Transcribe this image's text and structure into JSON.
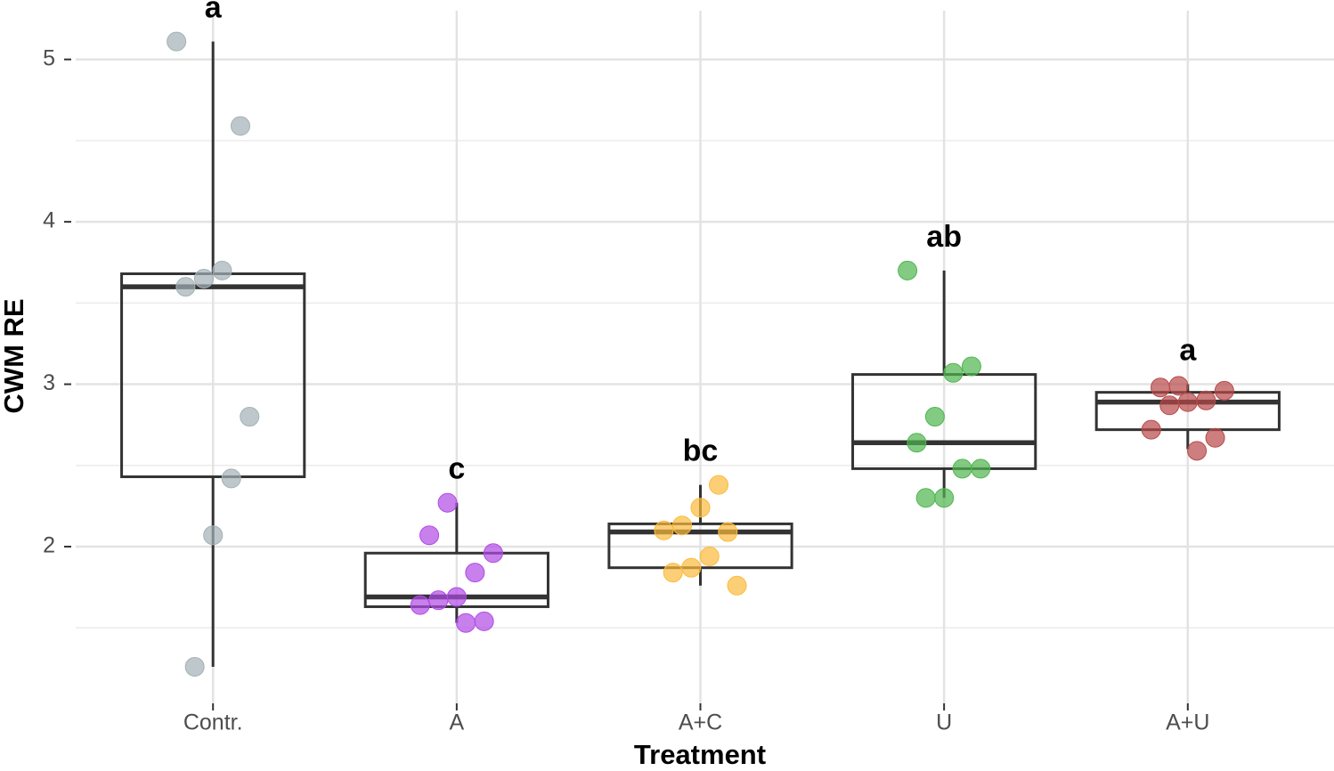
{
  "chart_data": {
    "type": "box",
    "xlabel": "Treatment",
    "ylabel": "CWM RE",
    "categories": [
      "Contr.",
      "A",
      "A+C",
      "U",
      "A+U"
    ],
    "colors": [
      "#a3b1b6",
      "#b04ae6",
      "#fbbb3c",
      "#4fb54f",
      "#b84848"
    ],
    "boxes": [
      {
        "whisker_low": 1.26,
        "q1": 2.43,
        "median": 3.6,
        "q3": 3.68,
        "whisker_high": 5.11
      },
      {
        "whisker_low": 1.53,
        "q1": 1.63,
        "median": 1.69,
        "q3": 1.96,
        "whisker_high": 2.27
      },
      {
        "whisker_low": 1.76,
        "q1": 1.87,
        "median": 2.09,
        "q3": 2.14,
        "whisker_high": 2.38
      },
      {
        "whisker_low": 2.3,
        "q1": 2.48,
        "median": 2.64,
        "q3": 3.06,
        "whisker_high": 3.7
      },
      {
        "whisker_low": 2.6,
        "q1": 2.72,
        "median": 2.89,
        "q3": 2.95,
        "whisker_high": 3.0
      }
    ],
    "points": [
      [
        5.11,
        4.59,
        3.7,
        3.65,
        3.6,
        2.8,
        2.42,
        2.07,
        1.26
      ],
      [
        2.27,
        2.07,
        1.96,
        1.84,
        1.69,
        1.67,
        1.64,
        1.54,
        1.53
      ],
      [
        2.38,
        2.24,
        2.13,
        2.1,
        2.09,
        1.94,
        1.87,
        1.84,
        1.76
      ],
      [
        3.7,
        3.11,
        3.07,
        2.8,
        2.64,
        2.48,
        2.48,
        2.3,
        2.3
      ],
      [
        2.99,
        2.98,
        2.96,
        2.9,
        2.89,
        2.87,
        2.72,
        2.67,
        2.59
      ]
    ],
    "letters": [
      "a",
      "c",
      "bc",
      "ab",
      "a"
    ],
    "ylim": [
      1.035,
      5.3
    ],
    "yticks": [
      2,
      3,
      4,
      5
    ],
    "minor_yticks": [
      1.5,
      2.5,
      3.5,
      4.5
    ],
    "grid": true
  }
}
